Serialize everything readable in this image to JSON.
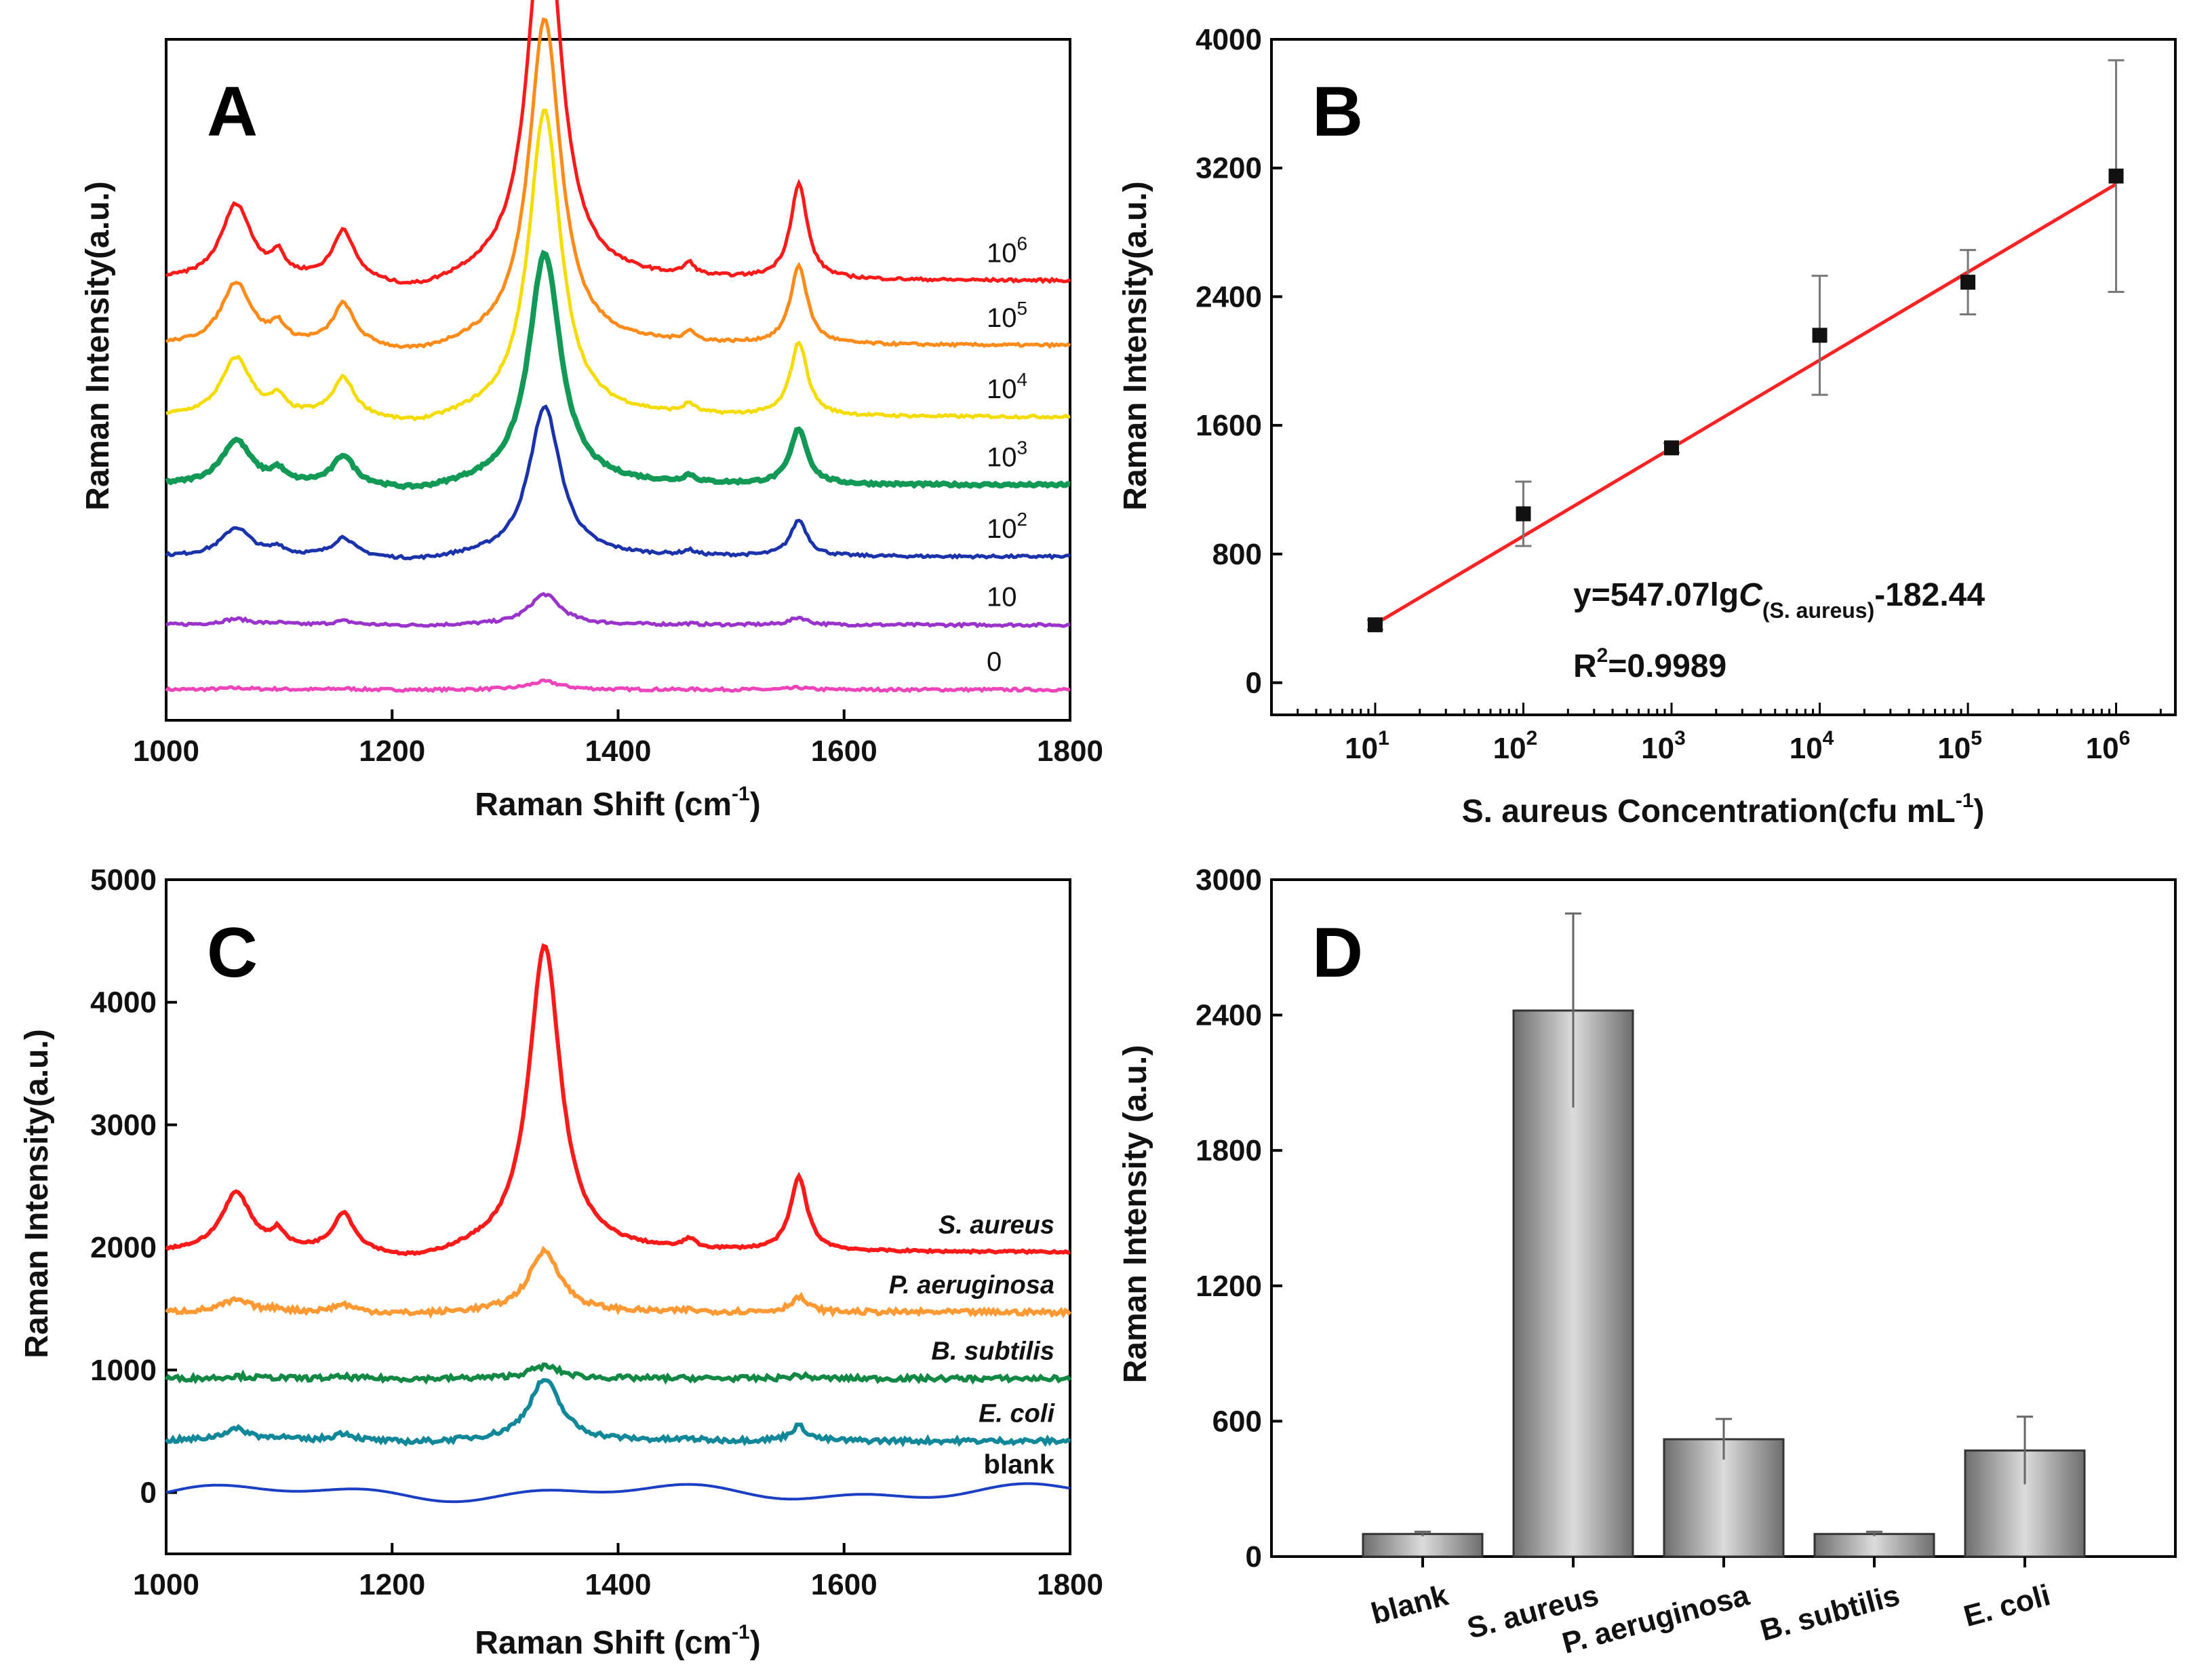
{
  "chart_data": [
    {
      "type": "line",
      "panel": "A",
      "panel_label": "A",
      "title": "",
      "xlabel": "Raman Shift (cm",
      "xlabel_sup": "-1",
      "xlabel_close": ")",
      "ylabel": "Raman Intensity(a.u.)",
      "xlim": [
        1000,
        1800
      ],
      "ylim": [
        0,
        1
      ],
      "xticks": [
        "1000",
        "1200",
        "1400",
        "1600",
        "1800"
      ],
      "yticks": [],
      "series": [
        {
          "name": "0",
          "label_base": "0",
          "label_exp": "",
          "color": "#ee44bb",
          "offset": 0.045,
          "scale": 0.012
        },
        {
          "name": "10",
          "label_base": "10",
          "label_exp": "",
          "color": "#9933cc",
          "offset": 0.14,
          "scale": 0.045
        },
        {
          "name": "10^2",
          "label_base": "10",
          "label_exp": "2",
          "color": "#1a33aa",
          "offset": 0.24,
          "scale": 0.22
        },
        {
          "name": "10^3",
          "label_base": "10",
          "label_exp": "3",
          "color": "#119955",
          "offset": 0.345,
          "scale": 0.34
        },
        {
          "name": "10^4",
          "label_base": "10",
          "label_exp": "4",
          "color": "#f5dc00",
          "offset": 0.445,
          "scale": 0.45
        },
        {
          "name": "10^5",
          "label_base": "10",
          "label_exp": "5",
          "color": "#ff8c1a",
          "offset": 0.55,
          "scale": 0.48
        },
        {
          "name": "10^6",
          "label_base": "10",
          "label_exp": "6",
          "color": "#ff1a1a",
          "offset": 0.645,
          "scale": 0.58
        }
      ]
    },
    {
      "type": "scatter",
      "panel": "B",
      "panel_label": "B",
      "title": "",
      "xlabel": "S. aureus Concentration(cfu mL",
      "xlabel_sup": "-1",
      "xlabel_close": ")",
      "ylabel": "Raman Intensity(a.u.)",
      "xscale": "log",
      "xlim_log10": [
        0.3,
        6.4
      ],
      "ylim": [
        -200,
        4000
      ],
      "yticks": [
        "0",
        "800",
        "1600",
        "2400",
        "3200",
        "4000"
      ],
      "xticks_base": "10",
      "xticks_exp": [
        "1",
        "2",
        "3",
        "4",
        "5",
        "6"
      ],
      "x": [
        10,
        100,
        1000,
        10000,
        100000,
        1000000
      ],
      "y": [
        360,
        1050,
        1460,
        2160,
        2490,
        3150
      ],
      "yerr": [
        30,
        200,
        30,
        370,
        200,
        720
      ],
      "fit": {
        "slope": 547.07,
        "intercept": -182.44,
        "color": "#ff2222"
      },
      "equation_prefix": "y=547.07lg",
      "equation_var": "C",
      "equation_sub": "(S. aureus)",
      "equation_suffix": "-182.44",
      "r2_prefix": "R",
      "r2_sup": "2",
      "r2_value": "=0.9989"
    },
    {
      "type": "line",
      "panel": "C",
      "panel_label": "C",
      "title": "",
      "xlabel": "Raman Shift (cm",
      "xlabel_sup": "-1",
      "xlabel_close": ")",
      "ylabel": "Raman Intensity(a.u.)",
      "xlim": [
        1000,
        1800
      ],
      "ylim": [
        -500,
        5000
      ],
      "xticks": [
        "1000",
        "1200",
        "1400",
        "1600",
        "1800"
      ],
      "yticks": [
        "0",
        "1000",
        "2000",
        "3000",
        "4000",
        "5000"
      ],
      "series": [
        {
          "name": "blank",
          "color": "#1a3fc4",
          "offset": 0,
          "scale": 0
        },
        {
          "name": "E. coli",
          "color": "#118899",
          "offset": 420,
          "scale": 500
        },
        {
          "name": "B. subtilis",
          "color": "#118844",
          "offset": 930,
          "scale": 100
        },
        {
          "name": "P. aeruginosa",
          "color": "#ff9933",
          "offset": 1470,
          "scale": 500
        },
        {
          "name": "S. aureus",
          "color": "#ff1a1a",
          "offset": 1960,
          "scale": 2500
        }
      ]
    },
    {
      "type": "bar",
      "panel": "D",
      "panel_label": "D",
      "title": "",
      "xlabel": "",
      "ylabel": "Raman Intensity (a.u.)",
      "ylim": [
        0,
        3000
      ],
      "yticks": [
        "0",
        "600",
        "1200",
        "1800",
        "2400",
        "3000"
      ],
      "categories": [
        "blank",
        "S. aureus",
        "P. aeruginosa",
        "B. subtilis",
        "E. coli"
      ],
      "values": [
        100,
        2420,
        520,
        100,
        470
      ],
      "errors": [
        10,
        430,
        90,
        10,
        150
      ],
      "bar_color": "#9a9a9a"
    }
  ]
}
